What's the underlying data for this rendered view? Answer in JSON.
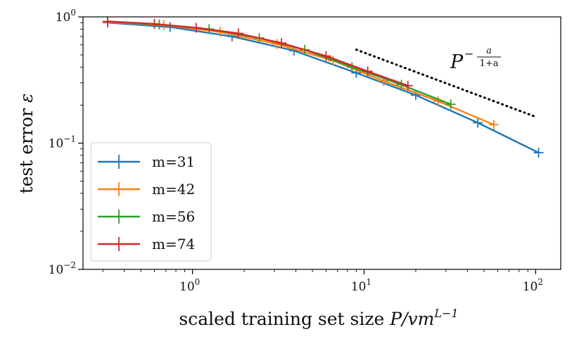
{
  "chart_data": {
    "type": "line",
    "xscale": "log",
    "yscale": "log",
    "xlim": [
      0.23,
      140
    ],
    "ylim": [
      0.01,
      1.0
    ],
    "xlabel": {
      "prefix": "scaled training set size ",
      "math": "P/vm",
      "sup": "L−1"
    },
    "ylabel": {
      "prefix": "test error ",
      "math": "ε"
    },
    "x_ticks": [
      {
        "value": 1,
        "base": "10",
        "exp": "0"
      },
      {
        "value": 10,
        "base": "10",
        "exp": "1"
      },
      {
        "value": 100,
        "base": "10",
        "exp": "2"
      }
    ],
    "y_ticks": [
      {
        "value": 0.01,
        "base": "10",
        "exp": "−2"
      },
      {
        "value": 0.1,
        "base": "10",
        "exp": "−1"
      },
      {
        "value": 1,
        "base": "10",
        "exp": "0"
      }
    ],
    "legend_position": "lower-left",
    "series": [
      {
        "name": "m=31",
        "color": "#1f77b4",
        "x": [
          0.32,
          0.74,
          1.7,
          3.9,
          9,
          20,
          46,
          104
        ],
        "y": [
          0.9,
          0.83,
          0.7,
          0.54,
          0.36,
          0.24,
          0.145,
          0.084
        ]
      },
      {
        "name": "m=42",
        "color": "#ff7f0e",
        "x": [
          0.32,
          0.68,
          1.45,
          3.1,
          6.6,
          13,
          27,
          57
        ],
        "y": [
          0.91,
          0.86,
          0.76,
          0.61,
          0.45,
          0.31,
          0.215,
          0.14
        ]
      },
      {
        "name": "m=56",
        "color": "#2ca02c",
        "x": [
          0.32,
          0.64,
          1.25,
          2.45,
          4.5,
          8.5,
          16.5,
          32
        ],
        "y": [
          0.92,
          0.87,
          0.8,
          0.68,
          0.55,
          0.4,
          0.29,
          0.203
        ]
      },
      {
        "name": "m=74",
        "color": "#d62728",
        "x": [
          0.32,
          0.6,
          1.05,
          1.85,
          3.3,
          6,
          10.5,
          18
        ],
        "y": [
          0.92,
          0.88,
          0.82,
          0.74,
          0.62,
          0.49,
          0.37,
          0.285
        ]
      }
    ],
    "reference_line": {
      "style": "dotted",
      "color": "#000000",
      "x": [
        9,
        102
      ],
      "y": [
        0.55,
        0.16
      ],
      "label": {
        "base": "P",
        "exponent": "−a/(1+a)",
        "exp_minus": "−",
        "exp_num": "a",
        "exp_den": "1+a"
      }
    }
  }
}
